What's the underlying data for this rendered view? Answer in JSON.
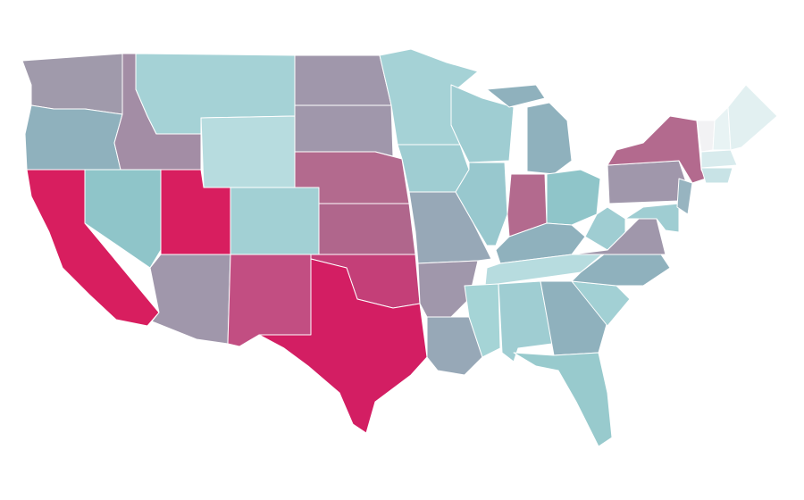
{
  "map": {
    "region_colors": [
      "#a09aab",
      "#8fb1bd",
      "#d81e5f",
      "#8fc5c9",
      "#a38da5",
      "#a5d2d6",
      "#b7dcdf",
      "#d81e5f",
      "#a2d0d4",
      "#a097ab",
      "#c24e82",
      "#a097ab",
      "#a097ab",
      "#b36a8e",
      "#b0668c",
      "#c43f78",
      "#d31e63",
      "#a5d2d6",
      "#9fcdd2",
      "#97a8b7",
      "#a097ab",
      "#97a8b7",
      "#9fcdd2",
      "#98c8ce",
      "#b36a8e",
      "#8fb1bd",
      "#8fb1bd",
      "#8fc5c9",
      "#8fb1bd",
      "#b7dcdf",
      "#a5d4d6",
      "#9fcdd2",
      "#8fb1bd",
      "#98cacd",
      "#a2d0d4",
      "#8fb1bd",
      "#a097ab",
      "#9fcdd2",
      "#a097ab",
      "#b36a8e",
      "#9fcdd2",
      "#97b4c0",
      "#f2f2f4",
      "#e8f3f4",
      "#e2f0f1",
      "#d8ebed",
      "#c8e3e6"
    ]
  }
}
